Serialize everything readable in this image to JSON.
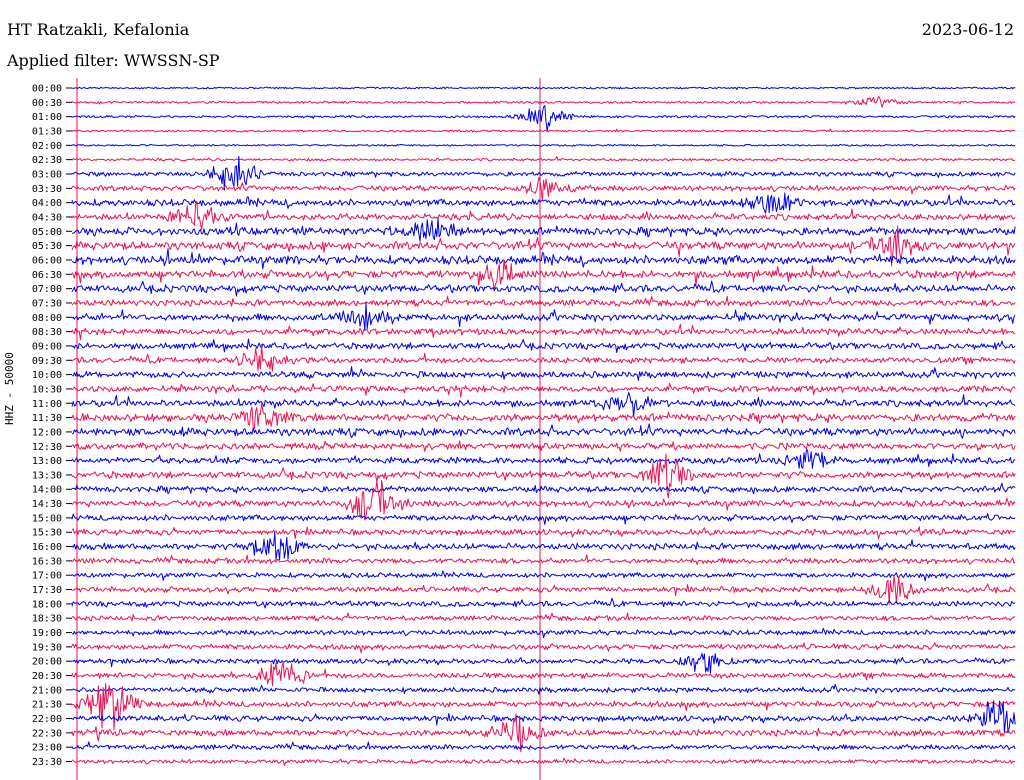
{
  "header": {
    "station": "HT Ratzakli, Kefalonia",
    "filter": "Applied filter: WWSSN-SP",
    "date": "2023-06-12"
  },
  "axis": {
    "ylabel": "HHZ - 50000"
  },
  "chart_data": {
    "type": "line",
    "title": "HT Ratzakli, Kefalonia",
    "subtitle": "Applied filter: WWSSN-SP",
    "ylabel": "HHZ - 50000",
    "xlabel": "",
    "row_labels": [
      "00:00",
      "00:30",
      "01:00",
      "01:30",
      "02:00",
      "02:30",
      "03:00",
      "03:30",
      "04:00",
      "04:30",
      "05:00",
      "05:30",
      "06:00",
      "06:30",
      "07:00",
      "07:30",
      "08:00",
      "08:30",
      "09:00",
      "09:30",
      "10:00",
      "10:30",
      "11:00",
      "11:30",
      "12:00",
      "12:30",
      "13:00",
      "13:30",
      "14:00",
      "14:30",
      "15:00",
      "15:30",
      "16:00",
      "16:30",
      "17:00",
      "17:30",
      "18:00",
      "18:30",
      "19:00",
      "19:30",
      "20:00",
      "20:30",
      "21:00",
      "21:30",
      "22:00",
      "22:30",
      "23:00",
      "23:30"
    ],
    "colors": [
      "#0000ee",
      "#ee1155"
    ],
    "trace_activity": [
      0.05,
      0.1,
      0.12,
      0.08,
      0.06,
      0.14,
      0.35,
      0.45,
      0.6,
      0.55,
      0.7,
      0.75,
      0.8,
      0.7,
      0.65,
      0.55,
      0.6,
      0.55,
      0.55,
      0.5,
      0.55,
      0.55,
      0.6,
      0.7,
      0.7,
      0.55,
      0.55,
      0.6,
      0.5,
      0.55,
      0.5,
      0.5,
      0.55,
      0.45,
      0.4,
      0.45,
      0.45,
      0.4,
      0.4,
      0.45,
      0.4,
      0.45,
      0.4,
      0.5,
      0.5,
      0.55,
      0.4,
      0.3
    ],
    "events": [
      {
        "row": 1,
        "pos": 0.85,
        "amp": 0.5
      },
      {
        "row": 2,
        "pos": 0.5,
        "amp": 1.1
      },
      {
        "row": 6,
        "pos": 0.17,
        "amp": 1.6
      },
      {
        "row": 7,
        "pos": 0.5,
        "amp": 1.0
      },
      {
        "row": 8,
        "pos": 0.74,
        "amp": 1.2
      },
      {
        "row": 9,
        "pos": 0.13,
        "amp": 1.4
      },
      {
        "row": 10,
        "pos": 0.38,
        "amp": 1.3
      },
      {
        "row": 11,
        "pos": 0.87,
        "amp": 1.2
      },
      {
        "row": 13,
        "pos": 0.45,
        "amp": 1.2
      },
      {
        "row": 16,
        "pos": 0.31,
        "amp": 0.9
      },
      {
        "row": 19,
        "pos": 0.2,
        "amp": 1.2
      },
      {
        "row": 22,
        "pos": 0.59,
        "amp": 1.0
      },
      {
        "row": 23,
        "pos": 0.2,
        "amp": 1.2
      },
      {
        "row": 26,
        "pos": 0.78,
        "amp": 1.0
      },
      {
        "row": 27,
        "pos": 0.63,
        "amp": 1.4
      },
      {
        "row": 29,
        "pos": 0.32,
        "amp": 1.8
      },
      {
        "row": 32,
        "pos": 0.22,
        "amp": 1.2
      },
      {
        "row": 35,
        "pos": 0.87,
        "amp": 1.4
      },
      {
        "row": 40,
        "pos": 0.67,
        "amp": 1.0
      },
      {
        "row": 41,
        "pos": 0.22,
        "amp": 1.3
      },
      {
        "row": 43,
        "pos": 0.04,
        "amp": 2.2
      },
      {
        "row": 44,
        "pos": 0.98,
        "amp": 1.5
      },
      {
        "row": 45,
        "pos": 0.47,
        "amp": 1.6
      }
    ]
  }
}
